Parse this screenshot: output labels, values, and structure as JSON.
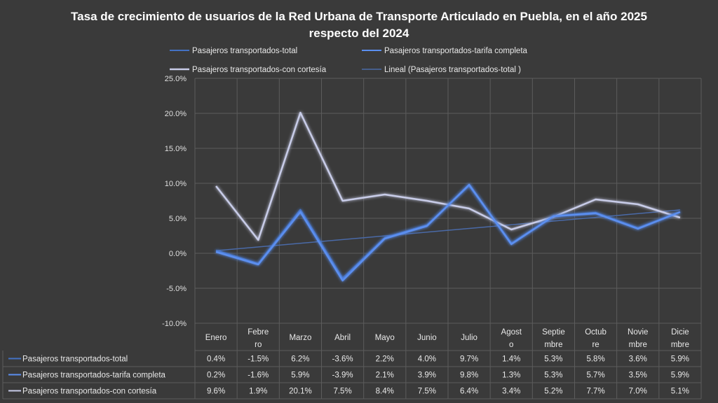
{
  "chart_data": {
    "type": "line",
    "title_line1": "Tasa de crecimiento de usuarios de la Red Urbana de Transporte Articulado en Puebla, en el año 2025",
    "title_line2": "respecto del  2024",
    "categories": [
      [
        "Enero"
      ],
      [
        "Febre",
        "ro"
      ],
      [
        "Marzo"
      ],
      [
        "Abril"
      ],
      [
        "Mayo"
      ],
      [
        "Junio"
      ],
      [
        "Julio"
      ],
      [
        "Agost",
        "o"
      ],
      [
        "Septie",
        "mbre"
      ],
      [
        "Octub",
        "re"
      ],
      [
        "Novie",
        "mbre"
      ],
      [
        "Dicie",
        "mbre"
      ]
    ],
    "y_ticks": [
      "25.0%",
      "20.0%",
      "15.0%",
      "10.0%",
      "5.0%",
      "0.0%",
      "-5.0%",
      "-10.0%"
    ],
    "ylim": [
      -10,
      25
    ],
    "grid": true,
    "legend_position": "top",
    "series": [
      {
        "name": "Pasajeros transportados-total",
        "color": "#4472c4",
        "values": [
          0.4,
          -1.5,
          6.2,
          -3.6,
          2.2,
          4.0,
          9.7,
          1.4,
          5.3,
          5.8,
          3.6,
          5.9
        ],
        "labels": [
          "0.4%",
          "-1.5%",
          "6.2%",
          "-3.6%",
          "2.2%",
          "4.0%",
          "9.7%",
          "1.4%",
          "5.3%",
          "5.8%",
          "3.6%",
          "5.9%"
        ]
      },
      {
        "name": "Pasajeros transportados-tarifa completa",
        "color": "#5b8ff0",
        "values": [
          0.2,
          -1.6,
          5.9,
          -3.9,
          2.1,
          3.9,
          9.8,
          1.3,
          5.3,
          5.7,
          3.5,
          5.9
        ],
        "labels": [
          "0.2%",
          "-1.6%",
          "5.9%",
          "-3.9%",
          "2.1%",
          "3.9%",
          "9.8%",
          "1.3%",
          "5.3%",
          "5.7%",
          "3.5%",
          "5.9%"
        ]
      },
      {
        "name": "Pasajeros transportados-con cortesía",
        "color": "#c8cce8",
        "values": [
          9.6,
          1.9,
          20.1,
          7.5,
          8.4,
          7.5,
          6.4,
          3.4,
          5.2,
          7.7,
          7.0,
          5.1
        ],
        "labels": [
          "9.6%",
          "1.9%",
          "20.1%",
          "7.5%",
          "8.4%",
          "7.5%",
          "6.4%",
          "3.4%",
          "5.2%",
          "7.7%",
          "7.0%",
          "5.1%"
        ]
      }
    ],
    "trendline": {
      "name": "Lineal (Pasajeros transportados-total )",
      "color": "#4a6aa8"
    }
  }
}
